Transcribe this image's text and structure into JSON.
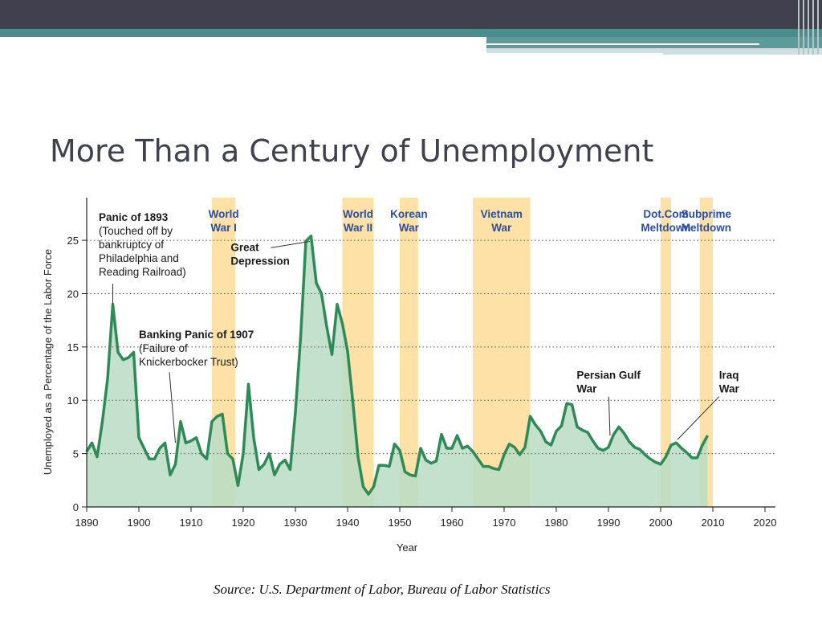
{
  "slide": {
    "title": "More Than a Century of Unemployment",
    "source": "Source: U.S. Department of Labor, Bureau of Labor Statistics"
  },
  "colors": {
    "header": "#40404f",
    "accent": "#4d8c8c",
    "line": "#2e8b57",
    "fill": "#b9dcc4",
    "band": "#fde1a6",
    "band_label": "#2b4ea0"
  },
  "chart_data": {
    "type": "area",
    "title": "",
    "xlabel": "Year",
    "ylabel": "Unemployed as a Percentage of the Labor Force",
    "xlim": [
      1890,
      2022
    ],
    "ylim": [
      0,
      29
    ],
    "x_ticks": [
      1890,
      1900,
      1910,
      1920,
      1930,
      1940,
      1950,
      1960,
      1970,
      1980,
      1990,
      2000,
      2010,
      2020
    ],
    "y_ticks": [
      0,
      5,
      10,
      15,
      20,
      25
    ],
    "grid": "horizontal dotted",
    "series": [
      {
        "x": [
          1890,
          1891,
          1892,
          1893,
          1894,
          1895,
          1896,
          1897,
          1898,
          1899,
          1900,
          1901,
          1902,
          1903,
          1904,
          1905,
          1906,
          1907,
          1908,
          1909,
          1910,
          1911,
          1912,
          1913,
          1914,
          1915,
          1916,
          1917,
          1918,
          1919,
          1920,
          1921,
          1922,
          1923,
          1924,
          1925,
          1926,
          1927,
          1928,
          1929,
          1930,
          1931,
          1932,
          1933,
          1934,
          1935,
          1936,
          1937,
          1938,
          1939,
          1940,
          1941,
          1942,
          1943,
          1944,
          1945,
          1946,
          1947,
          1948,
          1949,
          1950,
          1951,
          1952,
          1953,
          1954,
          1955,
          1956,
          1957,
          1958,
          1959,
          1960,
          1961,
          1962,
          1963,
          1964,
          1965,
          1966,
          1967,
          1968,
          1969,
          1970,
          1971,
          1972,
          1973,
          1974,
          1975,
          1976,
          1977,
          1978,
          1979,
          1980,
          1981,
          1982,
          1983,
          1984,
          1985,
          1986,
          1987,
          1988,
          1989,
          1990,
          1991,
          1992,
          1993,
          1994,
          1995,
          1996,
          1997,
          1998,
          1999,
          2000,
          2001,
          2002,
          2003,
          2004,
          2005,
          2006,
          2007,
          2008,
          2009
        ],
        "values": [
          5.2,
          6.0,
          4.7,
          8.0,
          12.0,
          19.0,
          14.5,
          13.8,
          14.0,
          14.5,
          6.5,
          5.5,
          4.5,
          4.5,
          5.5,
          6.0,
          3.0,
          4.0,
          8.0,
          6.0,
          6.2,
          6.5,
          5.0,
          4.5,
          8.0,
          8.5,
          8.7,
          5.0,
          4.5,
          2.0,
          5.0,
          11.5,
          6.5,
          3.5,
          4.0,
          5.0,
          3.0,
          4.0,
          4.4,
          3.5,
          8.9,
          15.9,
          24.9,
          25.4,
          21.0,
          20.0,
          16.9,
          14.3,
          19.0,
          17.2,
          14.6,
          9.9,
          4.7,
          1.9,
          1.2,
          1.9,
          3.9,
          3.9,
          3.8,
          5.9,
          5.3,
          3.3,
          3.0,
          2.9,
          5.5,
          4.4,
          4.1,
          4.3,
          6.8,
          5.5,
          5.5,
          6.7,
          5.5,
          5.7,
          5.2,
          4.5,
          3.8,
          3.8,
          3.6,
          3.5,
          4.9,
          5.9,
          5.6,
          4.9,
          5.6,
          8.5,
          7.7,
          7.1,
          6.1,
          5.8,
          7.1,
          7.6,
          9.7,
          9.6,
          7.5,
          7.2,
          7.0,
          6.2,
          5.5,
          5.3,
          5.6,
          6.8,
          7.5,
          6.9,
          6.1,
          5.6,
          5.4,
          4.9,
          4.5,
          4.2,
          4.0,
          4.7,
          5.8,
          6.0,
          5.5,
          5.1,
          4.6,
          4.6,
          5.8,
          6.7
        ]
      }
    ],
    "bands": [
      {
        "label": [
          "World",
          "War I"
        ],
        "start": 1914,
        "end": 1918.5
      },
      {
        "label": [
          "World",
          "War II"
        ],
        "start": 1939,
        "end": 1945
      },
      {
        "label": [
          "Korean",
          "War"
        ],
        "start": 1950,
        "end": 1953.5
      },
      {
        "label": [
          "Vietnam",
          "War"
        ],
        "start": 1964,
        "end": 1975
      },
      {
        "label": [
          "Dot.Com",
          "Meltdown"
        ],
        "start": 2000,
        "end": 2002
      },
      {
        "label": [
          "Subprime",
          "Meltdown"
        ],
        "start": 2007.5,
        "end": 2010
      }
    ],
    "annotations": [
      {
        "id": "panic-1893",
        "lines": [
          "Panic of 1893",
          "(Touched off by",
          "bankruptcy of",
          "Philadelphia and",
          "Reading Railroad)"
        ],
        "bold_lines": 1,
        "point": [
          1895,
          19
        ],
        "anchor_year": 1892.3,
        "anchor_value": 26.8
      },
      {
        "id": "great-depression",
        "lines": [
          "Great",
          "Depression"
        ],
        "bold_lines": 2,
        "point": [
          1932.8,
          24.9
        ],
        "anchor_year": 1917.6,
        "anchor_value": 24.0
      },
      {
        "id": "banking-panic-1907",
        "lines": [
          "Banking Panic of 1907",
          "(Failure of",
          "Knickerbocker Trust)"
        ],
        "bold_lines": 1,
        "point": [
          1907,
          6
        ],
        "anchor_year": 1900,
        "anchor_value": 15.8
      },
      {
        "id": "persian-gulf-war",
        "lines": [
          "Persian Gulf",
          "War"
        ],
        "bold_lines": 2,
        "point": [
          1990.3,
          6.7
        ],
        "anchor_year": 1983.9,
        "anchor_value": 12.0
      },
      {
        "id": "iraq-war",
        "lines": [
          "Iraq",
          "War"
        ],
        "bold_lines": 2,
        "point": [
          2003.2,
          6.3
        ],
        "anchor_year": 2011.2,
        "anchor_value": 12.0
      }
    ]
  }
}
